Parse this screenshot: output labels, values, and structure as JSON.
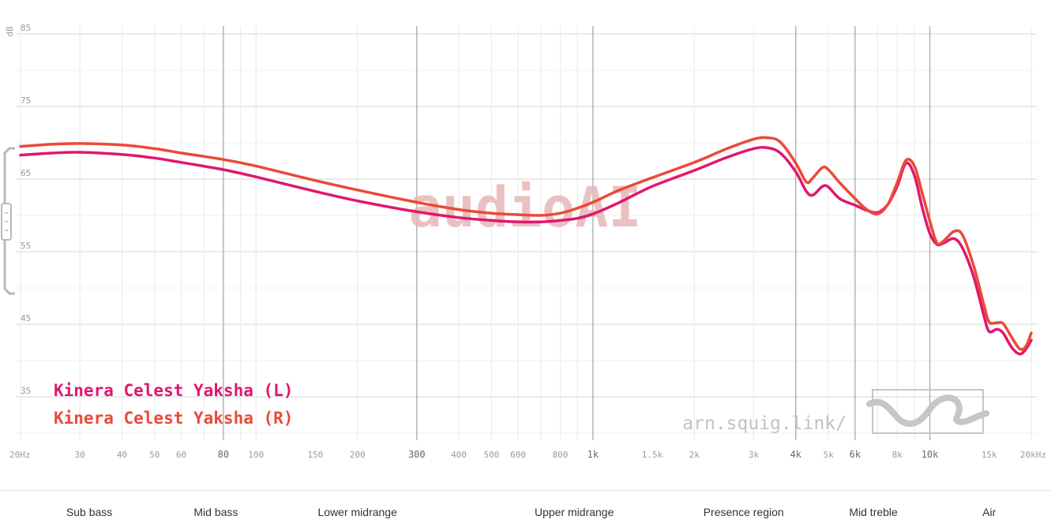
{
  "chart_data": {
    "type": "line",
    "y_unit_label": "dB",
    "x_scale": "log",
    "xlim": [
      20,
      20000
    ],
    "ylim": [
      30,
      87
    ],
    "y_ticks": [
      {
        "v": 85,
        "label": "85"
      },
      {
        "v": 75,
        "label": "75"
      },
      {
        "v": 65,
        "label": "65"
      },
      {
        "v": 55,
        "label": "55"
      },
      {
        "v": 45,
        "label": "45"
      },
      {
        "v": 35,
        "label": "35"
      }
    ],
    "x_ticks": [
      {
        "v": 20,
        "label": "20Hz",
        "major": false
      },
      {
        "v": 30,
        "label": "30",
        "major": false
      },
      {
        "v": 40,
        "label": "40",
        "major": false
      },
      {
        "v": 50,
        "label": "50",
        "major": false
      },
      {
        "v": 60,
        "label": "60",
        "major": false
      },
      {
        "v": 80,
        "label": "80",
        "major": true
      },
      {
        "v": 100,
        "label": "100",
        "major": false
      },
      {
        "v": 150,
        "label": "150",
        "major": false
      },
      {
        "v": 200,
        "label": "200",
        "major": false
      },
      {
        "v": 300,
        "label": "300",
        "major": true
      },
      {
        "v": 400,
        "label": "400",
        "major": false
      },
      {
        "v": 500,
        "label": "500",
        "major": false
      },
      {
        "v": 600,
        "label": "600",
        "major": false
      },
      {
        "v": 800,
        "label": "800",
        "major": false
      },
      {
        "v": 1000,
        "label": "1k",
        "major": true
      },
      {
        "v": 1500,
        "label": "1.5k",
        "major": false
      },
      {
        "v": 2000,
        "label": "2k",
        "major": false
      },
      {
        "v": 3000,
        "label": "3k",
        "major": false
      },
      {
        "v": 4000,
        "label": "4k",
        "major": true
      },
      {
        "v": 5000,
        "label": "5k",
        "major": false
      },
      {
        "v": 6000,
        "label": "6k",
        "major": true
      },
      {
        "v": 8000,
        "label": "8k",
        "major": false
      },
      {
        "v": 10000,
        "label": "10k",
        "major": true
      },
      {
        "v": 15000,
        "label": "15k",
        "major": false
      },
      {
        "v": 20000,
        "label": "20kHz",
        "major": false
      }
    ],
    "grid": true,
    "legend_position": "bottom-left",
    "series": [
      {
        "name": "Kinera Celest Yaksha (L)",
        "color": "#e0176e",
        "points": [
          [
            20,
            68.3
          ],
          [
            25,
            68.6
          ],
          [
            30,
            68.7
          ],
          [
            40,
            68.4
          ],
          [
            50,
            67.9
          ],
          [
            60,
            67.3
          ],
          [
            80,
            66.3
          ],
          [
            100,
            65.3
          ],
          [
            150,
            63.3
          ],
          [
            200,
            62.0
          ],
          [
            300,
            60.5
          ],
          [
            400,
            59.7
          ],
          [
            500,
            59.3
          ],
          [
            600,
            59.1
          ],
          [
            700,
            59.1
          ],
          [
            800,
            59.3
          ],
          [
            900,
            59.6
          ],
          [
            1000,
            60.2
          ],
          [
            1200,
            61.8
          ],
          [
            1500,
            64.0
          ],
          [
            2000,
            66.2
          ],
          [
            2500,
            68.0
          ],
          [
            3000,
            69.2
          ],
          [
            3300,
            69.3
          ],
          [
            3600,
            68.6
          ],
          [
            4000,
            66.0
          ],
          [
            4300,
            63.3
          ],
          [
            4500,
            62.8
          ],
          [
            4800,
            64.0
          ],
          [
            5000,
            63.9
          ],
          [
            5400,
            62.3
          ],
          [
            6000,
            61.4
          ],
          [
            6500,
            60.7
          ],
          [
            7000,
            60.4
          ],
          [
            7500,
            61.5
          ],
          [
            8000,
            64.0
          ],
          [
            8500,
            67.2
          ],
          [
            9000,
            65.5
          ],
          [
            9500,
            61.0
          ],
          [
            10000,
            57.5
          ],
          [
            10500,
            56.0
          ],
          [
            11000,
            56.2
          ],
          [
            11800,
            56.8
          ],
          [
            12500,
            55.5
          ],
          [
            13500,
            51.5
          ],
          [
            14500,
            46.0
          ],
          [
            15000,
            44.0
          ],
          [
            15800,
            44.3
          ],
          [
            16500,
            43.8
          ],
          [
            17500,
            41.8
          ],
          [
            18500,
            40.9
          ],
          [
            19300,
            41.6
          ],
          [
            20000,
            42.8
          ]
        ]
      },
      {
        "name": "Kinera Celest Yaksha (R)",
        "color": "#ea4a38",
        "points": [
          [
            20,
            69.5
          ],
          [
            25,
            69.8
          ],
          [
            30,
            69.9
          ],
          [
            40,
            69.7
          ],
          [
            50,
            69.2
          ],
          [
            60,
            68.6
          ],
          [
            80,
            67.7
          ],
          [
            100,
            66.8
          ],
          [
            150,
            64.8
          ],
          [
            200,
            63.5
          ],
          [
            300,
            61.8
          ],
          [
            400,
            60.8
          ],
          [
            500,
            60.3
          ],
          [
            600,
            60.1
          ],
          [
            700,
            60.0
          ],
          [
            800,
            60.3
          ],
          [
            900,
            61.0
          ],
          [
            1000,
            61.8
          ],
          [
            1200,
            63.5
          ],
          [
            1500,
            65.2
          ],
          [
            2000,
            67.3
          ],
          [
            2500,
            69.2
          ],
          [
            3000,
            70.5
          ],
          [
            3300,
            70.7
          ],
          [
            3600,
            70.1
          ],
          [
            4000,
            67.2
          ],
          [
            4300,
            64.6
          ],
          [
            4500,
            65.2
          ],
          [
            4800,
            66.6
          ],
          [
            5000,
            66.3
          ],
          [
            5400,
            64.5
          ],
          [
            6000,
            62.3
          ],
          [
            6500,
            60.8
          ],
          [
            7000,
            60.2
          ],
          [
            7500,
            61.5
          ],
          [
            8000,
            64.5
          ],
          [
            8500,
            67.6
          ],
          [
            9000,
            66.8
          ],
          [
            9500,
            63.0
          ],
          [
            10000,
            59.2
          ],
          [
            10500,
            56.2
          ],
          [
            11000,
            56.5
          ],
          [
            11800,
            57.8
          ],
          [
            12500,
            57.3
          ],
          [
            13500,
            53.0
          ],
          [
            14500,
            47.5
          ],
          [
            15000,
            45.3
          ],
          [
            15800,
            45.2
          ],
          [
            16500,
            45.1
          ],
          [
            17500,
            43.2
          ],
          [
            18500,
            41.6
          ],
          [
            19300,
            42.0
          ],
          [
            20000,
            43.8
          ]
        ]
      }
    ]
  },
  "watermark": "audioAI",
  "credit": "arn.squig.link/",
  "bands": [
    {
      "label": "Sub bass",
      "f": 32
    },
    {
      "label": "Mid bass",
      "f": 76
    },
    {
      "label": "Lower midrange",
      "f": 200
    },
    {
      "label": "Upper midrange",
      "f": 880
    },
    {
      "label": "Presence region",
      "f": 2800
    },
    {
      "label": "Mid treble",
      "f": 6800
    },
    {
      "label": "Air",
      "f": 15000
    }
  ]
}
